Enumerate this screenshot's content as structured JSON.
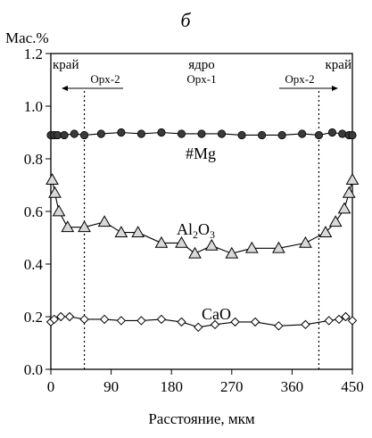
{
  "chart_data": {
    "type": "line",
    "panel_label": "б",
    "ylabel": "Мас.%",
    "xlabel": "Расстояние, мкм",
    "xlim": [
      0,
      450
    ],
    "ylim": [
      0,
      1.2
    ],
    "x_ticks": [
      0,
      90,
      180,
      270,
      360,
      450
    ],
    "y_ticks": [
      "0.0",
      "0.2",
      "0.4",
      "0.6",
      "0.8",
      "1.0",
      "1.2"
    ],
    "grid": false,
    "vertical_markers": [
      50,
      400
    ],
    "annotations": {
      "edge_left": "край",
      "edge_right": "край",
      "core": "ядро",
      "core_sub": "Opx-1",
      "zone_left": "Opx-2",
      "zone_right": "Opx-2"
    },
    "series": [
      {
        "name": "#Mg",
        "marker": "circle",
        "x": [
          0,
          5,
          10,
          20,
          35,
          50,
          75,
          105,
          135,
          165,
          195,
          225,
          255,
          285,
          315,
          345,
          375,
          400,
          420,
          435,
          445,
          450
        ],
        "y": [
          0.89,
          0.89,
          0.89,
          0.89,
          0.895,
          0.89,
          0.895,
          0.9,
          0.895,
          0.9,
          0.895,
          0.895,
          0.895,
          0.89,
          0.89,
          0.89,
          0.895,
          0.89,
          0.9,
          0.895,
          0.89,
          0.89
        ]
      },
      {
        "name": "Al2O3",
        "marker": "triangle",
        "x": [
          2,
          6,
          12,
          25,
          50,
          80,
          105,
          130,
          165,
          195,
          215,
          240,
          270,
          300,
          340,
          380,
          410,
          425,
          438,
          445,
          450
        ],
        "y": [
          0.72,
          0.67,
          0.6,
          0.54,
          0.54,
          0.56,
          0.52,
          0.52,
          0.48,
          0.48,
          0.44,
          0.47,
          0.44,
          0.46,
          0.46,
          0.48,
          0.52,
          0.56,
          0.61,
          0.67,
          0.72
        ]
      },
      {
        "name": "CaO",
        "marker": "diamond",
        "x": [
          0,
          5,
          15,
          28,
          50,
          80,
          105,
          135,
          165,
          195,
          220,
          245,
          275,
          305,
          340,
          380,
          415,
          430,
          440,
          450
        ],
        "y": [
          0.18,
          0.19,
          0.2,
          0.2,
          0.19,
          0.19,
          0.185,
          0.185,
          0.19,
          0.18,
          0.16,
          0.17,
          0.18,
          0.18,
          0.165,
          0.17,
          0.185,
          0.19,
          0.2,
          0.185
        ]
      }
    ]
  }
}
